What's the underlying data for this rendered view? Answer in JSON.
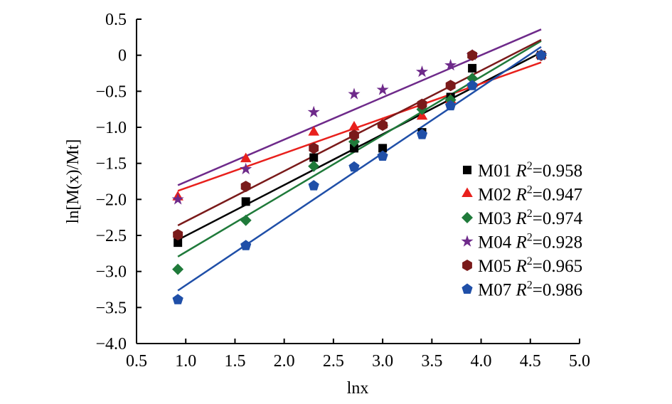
{
  "chart_data": {
    "type": "scatter",
    "xlabel": "lnx",
    "ylabel": "ln[M(x)/Mt]",
    "xlim": [
      0.5,
      5.0
    ],
    "ylim": [
      -4.0,
      0.5
    ],
    "xticks": [
      "0.5",
      "1.0",
      "1.5",
      "2.0",
      "2.5",
      "3.0",
      "3.5",
      "4.0",
      "4.5",
      "5.0"
    ],
    "yticks": [
      "0.5",
      "0",
      "-0.5",
      "-1.0",
      "-1.5",
      "-2.0",
      "-2.5",
      "-3.0",
      "-3.5",
      "-4.0"
    ],
    "grid": false,
    "legend_position": "right",
    "x": [
      0.92,
      1.61,
      2.3,
      2.71,
      3.0,
      3.4,
      3.69,
      3.91,
      4.61
    ],
    "series": [
      {
        "name": "M01",
        "r2": "0.958",
        "marker": "square",
        "color": "#000000",
        "values": [
          -2.6,
          -2.03,
          -1.42,
          -1.29,
          -1.29,
          -1.07,
          -0.58,
          -0.18,
          0.0
        ]
      },
      {
        "name": "M02",
        "r2": "0.947",
        "marker": "triangle",
        "color": "#e8201c",
        "values": [
          -1.97,
          -1.44,
          -1.07,
          -1.0,
          -0.95,
          -0.85,
          -0.62,
          -0.4,
          0.0
        ]
      },
      {
        "name": "M03",
        "r2": "0.974",
        "marker": "diamond",
        "color": "#1f7a3a",
        "values": [
          -2.97,
          -2.29,
          -1.54,
          -1.2,
          -0.97,
          -0.75,
          -0.62,
          -0.32,
          0.0
        ]
      },
      {
        "name": "M04",
        "r2": "0.928",
        "marker": "star",
        "color": "#6e2a8a",
        "values": [
          -2.0,
          -1.58,
          -0.79,
          -0.54,
          -0.48,
          -0.23,
          -0.14,
          0.0,
          0.0
        ]
      },
      {
        "name": "M05",
        "r2": "0.965",
        "marker": "hexagon",
        "color": "#7a1a1a",
        "values": [
          -2.49,
          -1.82,
          -1.29,
          -1.11,
          -0.97,
          -0.68,
          -0.42,
          0.0,
          0.0
        ]
      },
      {
        "name": "M07",
        "r2": "0.986",
        "marker": "pentagon",
        "color": "#1f4fa8",
        "values": [
          -3.39,
          -2.64,
          -1.81,
          -1.55,
          -1.4,
          -1.1,
          -0.7,
          -0.42,
          0.0
        ]
      }
    ]
  }
}
